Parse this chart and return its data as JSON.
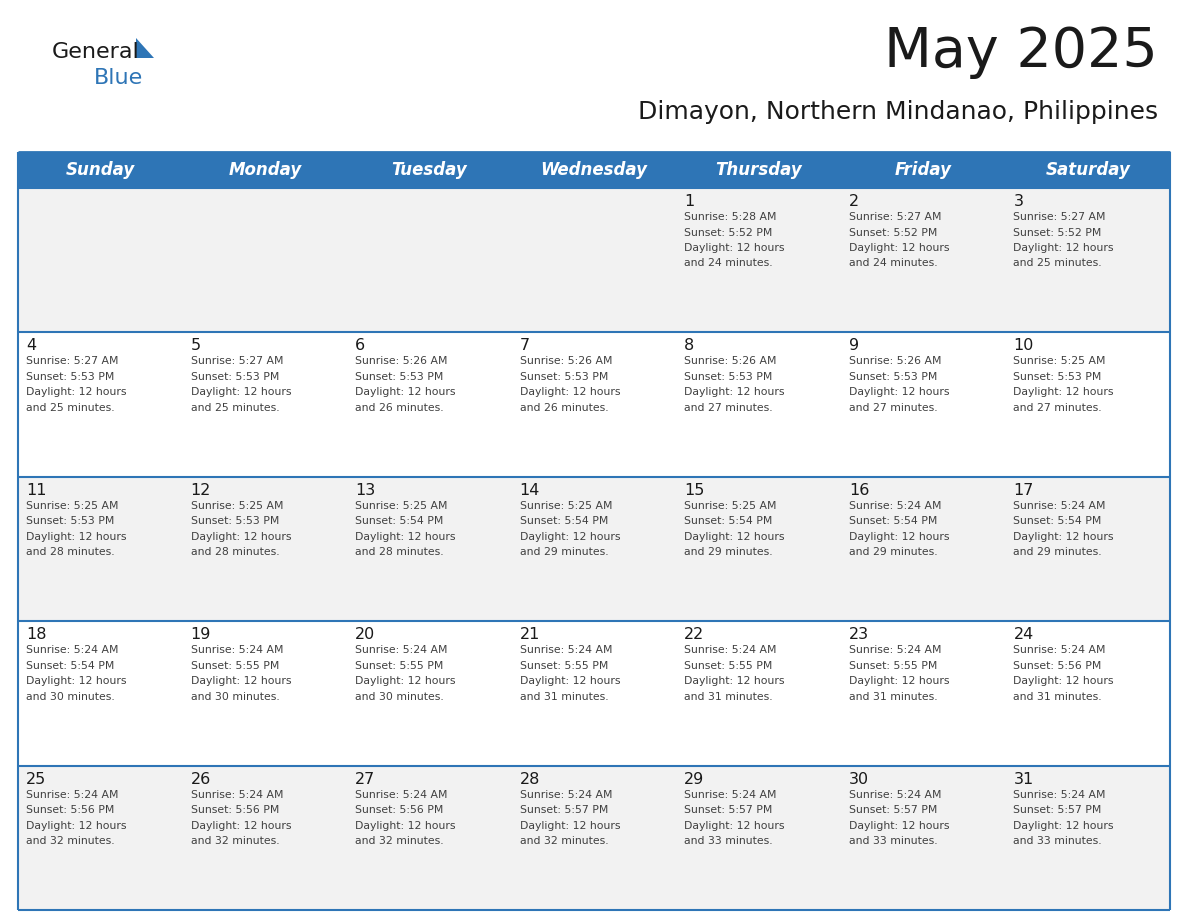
{
  "title": "May 2025",
  "subtitle": "Dimayon, Northern Mindanao, Philippines",
  "header_bg": "#2E75B6",
  "header_text_color": "#FFFFFF",
  "day_names": [
    "Sunday",
    "Monday",
    "Tuesday",
    "Wednesday",
    "Thursday",
    "Friday",
    "Saturday"
  ],
  "bg_color": "#FFFFFF",
  "cell_bg_row0": "#F2F2F2",
  "cell_bg_row1": "#FFFFFF",
  "cell_bg_row2": "#F2F2F2",
  "cell_bg_row3": "#FFFFFF",
  "cell_bg_row4": "#F2F2F2",
  "border_color": "#2E75B6",
  "text_color": "#404040",
  "number_color": "#1a1a1a",
  "days": [
    {
      "day": 1,
      "col": 4,
      "row": 0,
      "sunrise": "5:28 AM",
      "sunset": "5:52 PM",
      "daylight": "12 hours and 24 minutes."
    },
    {
      "day": 2,
      "col": 5,
      "row": 0,
      "sunrise": "5:27 AM",
      "sunset": "5:52 PM",
      "daylight": "12 hours and 24 minutes."
    },
    {
      "day": 3,
      "col": 6,
      "row": 0,
      "sunrise": "5:27 AM",
      "sunset": "5:52 PM",
      "daylight": "12 hours and 25 minutes."
    },
    {
      "day": 4,
      "col": 0,
      "row": 1,
      "sunrise": "5:27 AM",
      "sunset": "5:53 PM",
      "daylight": "12 hours and 25 minutes."
    },
    {
      "day": 5,
      "col": 1,
      "row": 1,
      "sunrise": "5:27 AM",
      "sunset": "5:53 PM",
      "daylight": "12 hours and 25 minutes."
    },
    {
      "day": 6,
      "col": 2,
      "row": 1,
      "sunrise": "5:26 AM",
      "sunset": "5:53 PM",
      "daylight": "12 hours and 26 minutes."
    },
    {
      "day": 7,
      "col": 3,
      "row": 1,
      "sunrise": "5:26 AM",
      "sunset": "5:53 PM",
      "daylight": "12 hours and 26 minutes."
    },
    {
      "day": 8,
      "col": 4,
      "row": 1,
      "sunrise": "5:26 AM",
      "sunset": "5:53 PM",
      "daylight": "12 hours and 27 minutes."
    },
    {
      "day": 9,
      "col": 5,
      "row": 1,
      "sunrise": "5:26 AM",
      "sunset": "5:53 PM",
      "daylight": "12 hours and 27 minutes."
    },
    {
      "day": 10,
      "col": 6,
      "row": 1,
      "sunrise": "5:25 AM",
      "sunset": "5:53 PM",
      "daylight": "12 hours and 27 minutes."
    },
    {
      "day": 11,
      "col": 0,
      "row": 2,
      "sunrise": "5:25 AM",
      "sunset": "5:53 PM",
      "daylight": "12 hours and 28 minutes."
    },
    {
      "day": 12,
      "col": 1,
      "row": 2,
      "sunrise": "5:25 AM",
      "sunset": "5:53 PM",
      "daylight": "12 hours and 28 minutes."
    },
    {
      "day": 13,
      "col": 2,
      "row": 2,
      "sunrise": "5:25 AM",
      "sunset": "5:54 PM",
      "daylight": "12 hours and 28 minutes."
    },
    {
      "day": 14,
      "col": 3,
      "row": 2,
      "sunrise": "5:25 AM",
      "sunset": "5:54 PM",
      "daylight": "12 hours and 29 minutes."
    },
    {
      "day": 15,
      "col": 4,
      "row": 2,
      "sunrise": "5:25 AM",
      "sunset": "5:54 PM",
      "daylight": "12 hours and 29 minutes."
    },
    {
      "day": 16,
      "col": 5,
      "row": 2,
      "sunrise": "5:24 AM",
      "sunset": "5:54 PM",
      "daylight": "12 hours and 29 minutes."
    },
    {
      "day": 17,
      "col": 6,
      "row": 2,
      "sunrise": "5:24 AM",
      "sunset": "5:54 PM",
      "daylight": "12 hours and 29 minutes."
    },
    {
      "day": 18,
      "col": 0,
      "row": 3,
      "sunrise": "5:24 AM",
      "sunset": "5:54 PM",
      "daylight": "12 hours and 30 minutes."
    },
    {
      "day": 19,
      "col": 1,
      "row": 3,
      "sunrise": "5:24 AM",
      "sunset": "5:55 PM",
      "daylight": "12 hours and 30 minutes."
    },
    {
      "day": 20,
      "col": 2,
      "row": 3,
      "sunrise": "5:24 AM",
      "sunset": "5:55 PM",
      "daylight": "12 hours and 30 minutes."
    },
    {
      "day": 21,
      "col": 3,
      "row": 3,
      "sunrise": "5:24 AM",
      "sunset": "5:55 PM",
      "daylight": "12 hours and 31 minutes."
    },
    {
      "day": 22,
      "col": 4,
      "row": 3,
      "sunrise": "5:24 AM",
      "sunset": "5:55 PM",
      "daylight": "12 hours and 31 minutes."
    },
    {
      "day": 23,
      "col": 5,
      "row": 3,
      "sunrise": "5:24 AM",
      "sunset": "5:55 PM",
      "daylight": "12 hours and 31 minutes."
    },
    {
      "day": 24,
      "col": 6,
      "row": 3,
      "sunrise": "5:24 AM",
      "sunset": "5:56 PM",
      "daylight": "12 hours and 31 minutes."
    },
    {
      "day": 25,
      "col": 0,
      "row": 4,
      "sunrise": "5:24 AM",
      "sunset": "5:56 PM",
      "daylight": "12 hours and 32 minutes."
    },
    {
      "day": 26,
      "col": 1,
      "row": 4,
      "sunrise": "5:24 AM",
      "sunset": "5:56 PM",
      "daylight": "12 hours and 32 minutes."
    },
    {
      "day": 27,
      "col": 2,
      "row": 4,
      "sunrise": "5:24 AM",
      "sunset": "5:56 PM",
      "daylight": "12 hours and 32 minutes."
    },
    {
      "day": 28,
      "col": 3,
      "row": 4,
      "sunrise": "5:24 AM",
      "sunset": "5:57 PM",
      "daylight": "12 hours and 32 minutes."
    },
    {
      "day": 29,
      "col": 4,
      "row": 4,
      "sunrise": "5:24 AM",
      "sunset": "5:57 PM",
      "daylight": "12 hours and 33 minutes."
    },
    {
      "day": 30,
      "col": 5,
      "row": 4,
      "sunrise": "5:24 AM",
      "sunset": "5:57 PM",
      "daylight": "12 hours and 33 minutes."
    },
    {
      "day": 31,
      "col": 6,
      "row": 4,
      "sunrise": "5:24 AM",
      "sunset": "5:57 PM",
      "daylight": "12 hours and 33 minutes."
    }
  ],
  "row_bg_colors": [
    "#F2F2F2",
    "#FFFFFF",
    "#F2F2F2",
    "#FFFFFF",
    "#F2F2F2"
  ],
  "logo_text1": "General",
  "logo_text2": "Blue",
  "logo_color1": "#1a1a1a",
  "logo_color2": "#2E75B6",
  "logo_triangle_color": "#2E75B6"
}
